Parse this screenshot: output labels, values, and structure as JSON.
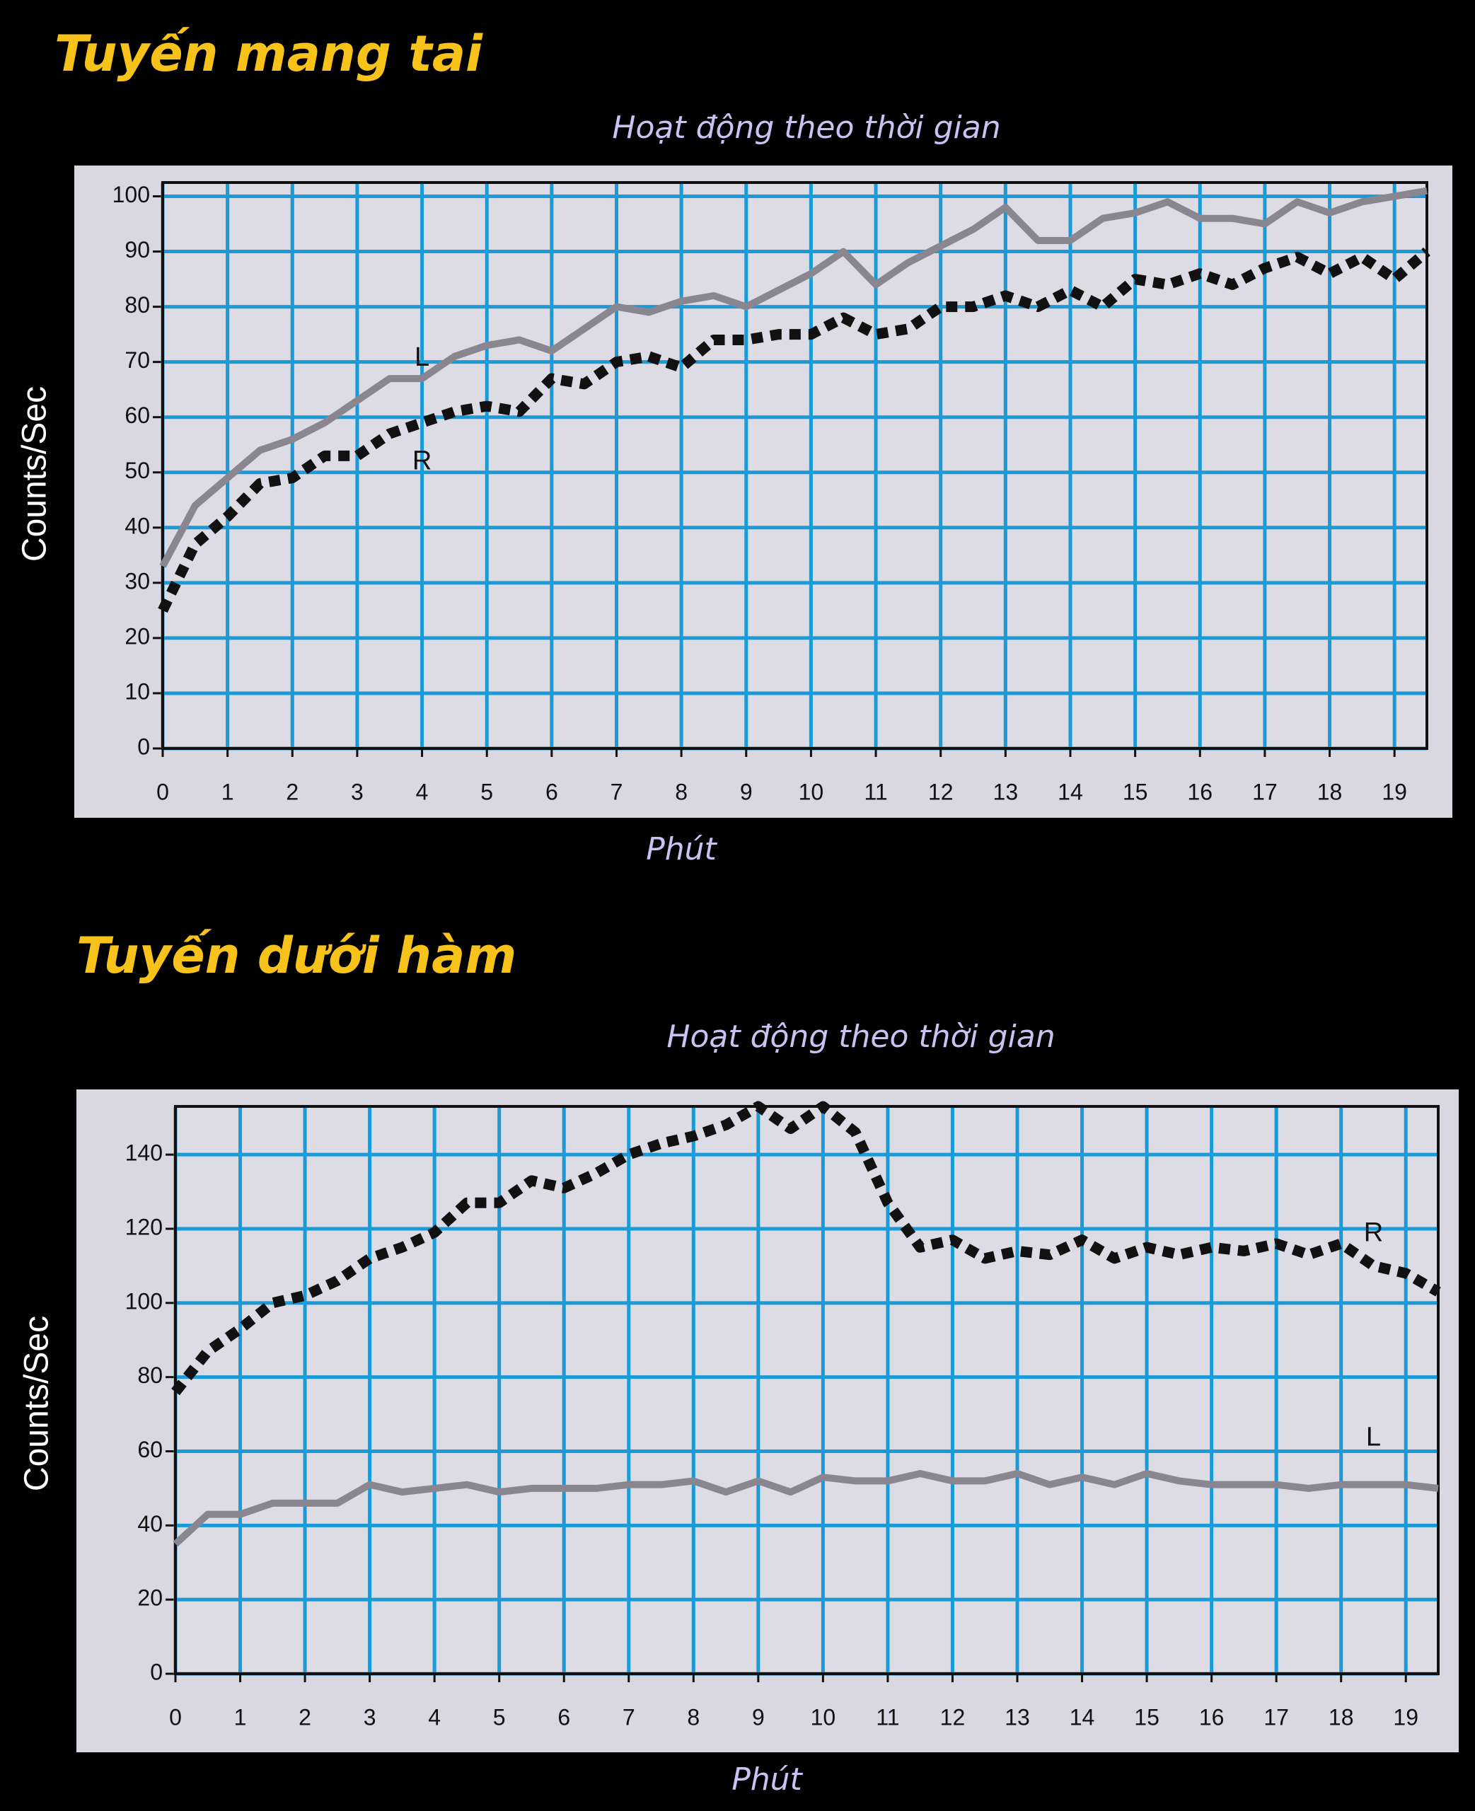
{
  "chart_data": [
    {
      "type": "line",
      "title": "Tuyến mang tai",
      "subtitle": "Hoạt động theo thời gian",
      "xlabel": "Phút",
      "ylabel": "Counts/Sec",
      "x": [
        0,
        0.5,
        1,
        1.5,
        2,
        2.5,
        3,
        3.5,
        4,
        4.5,
        5,
        5.5,
        6,
        6.5,
        7,
        7.5,
        8,
        8.5,
        9,
        9.5,
        10,
        10.5,
        11,
        11.5,
        12,
        12.5,
        13,
        13.5,
        14,
        14.5,
        15,
        15.5,
        16,
        16.5,
        17,
        17.5,
        18,
        18.5,
        19,
        19.5
      ],
      "series": [
        {
          "name": "L",
          "color": "#8a8690",
          "dashed": false,
          "values": [
            33,
            44,
            49,
            54,
            56,
            59,
            63,
            67,
            67,
            71,
            73,
            74,
            72,
            76,
            80,
            79,
            81,
            82,
            80,
            83,
            86,
            90,
            84,
            88,
            91,
            94,
            98,
            92,
            92,
            96,
            97,
            99,
            96,
            96,
            95,
            99,
            97,
            99,
            100,
            101
          ]
        },
        {
          "name": "R",
          "color": "#111111",
          "dashed": true,
          "values": [
            25,
            37,
            42,
            48,
            49,
            53,
            53,
            57,
            59,
            61,
            62,
            61,
            67,
            66,
            70,
            71,
            69,
            74,
            74,
            75,
            75,
            78,
            75,
            76,
            80,
            80,
            82,
            80,
            83,
            80,
            85,
            84,
            86,
            84,
            87,
            89,
            86,
            89,
            85,
            90
          ]
        }
      ],
      "xlim": [
        0,
        19.5
      ],
      "xticks": [
        0,
        1,
        2,
        3,
        4,
        5,
        6,
        7,
        8,
        9,
        10,
        11,
        12,
        13,
        14,
        15,
        16,
        17,
        18,
        19
      ],
      "ylim": [
        0,
        102.5
      ],
      "yticks": [
        0,
        10,
        20,
        30,
        40,
        50,
        60,
        70,
        80,
        90,
        100
      ],
      "grid": true,
      "grid_color": "#1a9ad6"
    },
    {
      "type": "line",
      "title": "Tuyến dưới hàm",
      "subtitle": "Hoạt động theo thời gian",
      "xlabel": "Phút",
      "ylabel": "Counts/Sec",
      "x": [
        0,
        0.5,
        1,
        1.5,
        2,
        2.5,
        3,
        3.5,
        4,
        4.5,
        5,
        5.5,
        6,
        6.5,
        7,
        7.5,
        8,
        8.5,
        9,
        9.5,
        10,
        10.5,
        11,
        11.5,
        12,
        12.5,
        13,
        13.5,
        14,
        14.5,
        15,
        15.5,
        16,
        16.5,
        17,
        17.5,
        18,
        18.5,
        19,
        19.5
      ],
      "series": [
        {
          "name": "R",
          "color": "#111111",
          "dashed": true,
          "values": [
            76,
            87,
            93,
            100,
            102,
            106,
            112,
            115,
            119,
            127,
            127,
            133,
            131,
            135,
            140,
            143,
            145,
            148,
            153,
            147,
            153,
            146,
            127,
            115,
            117,
            112,
            114,
            113,
            117,
            112,
            115,
            113,
            115,
            114,
            116,
            113,
            116,
            110,
            108,
            103
          ]
        },
        {
          "name": "L",
          "color": "#8a8690",
          "dashed": false,
          "values": [
            35,
            43,
            43,
            46,
            46,
            46,
            51,
            49,
            50,
            51,
            49,
            50,
            50,
            50,
            51,
            51,
            52,
            49,
            52,
            49,
            53,
            52,
            52,
            54,
            52,
            52,
            54,
            51,
            53,
            51,
            54,
            52,
            51,
            51,
            51,
            50,
            51,
            51,
            51,
            50
          ]
        }
      ],
      "xlim": [
        0,
        19.5
      ],
      "xticks": [
        0,
        1,
        2,
        3,
        4,
        5,
        6,
        7,
        8,
        9,
        10,
        11,
        12,
        13,
        14,
        15,
        16,
        17,
        18,
        19
      ],
      "ylim": [
        0,
        153
      ],
      "yticks": [
        0,
        20,
        40,
        60,
        80,
        100,
        120,
        140
      ],
      "grid": true,
      "grid_color": "#1a9ad6"
    }
  ]
}
